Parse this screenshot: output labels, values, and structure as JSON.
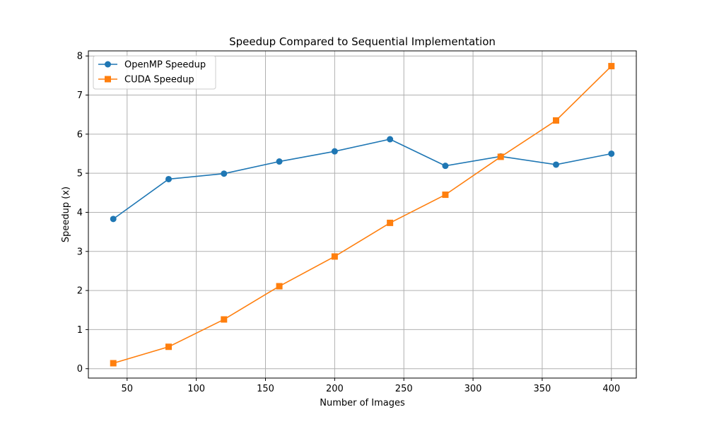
{
  "chart_data": {
    "type": "line",
    "title": "Speedup Compared to Sequential Implementation",
    "xlabel": "Number of Images",
    "ylabel": "Speedup (x)",
    "xlim": [
      22,
      418
    ],
    "ylim": [
      -0.24,
      8.13
    ],
    "xticks": [
      50,
      100,
      150,
      200,
      250,
      300,
      350,
      400
    ],
    "yticks": [
      0,
      1,
      2,
      3,
      4,
      5,
      6,
      7,
      8
    ],
    "grid": true,
    "legend_position": "upper-left",
    "x": [
      40,
      80,
      120,
      160,
      200,
      240,
      280,
      320,
      360,
      400
    ],
    "series": [
      {
        "name": "OpenMP Speedup",
        "color": "#1f77b4",
        "marker": "circle",
        "values": [
          3.83,
          4.85,
          4.99,
          5.3,
          5.56,
          5.87,
          5.19,
          5.43,
          5.22,
          5.5
        ]
      },
      {
        "name": "CUDA Speedup",
        "color": "#ff7f0e",
        "marker": "square",
        "values": [
          0.14,
          0.56,
          1.26,
          2.11,
          2.87,
          3.73,
          4.45,
          5.42,
          6.35,
          7.74
        ]
      }
    ]
  }
}
